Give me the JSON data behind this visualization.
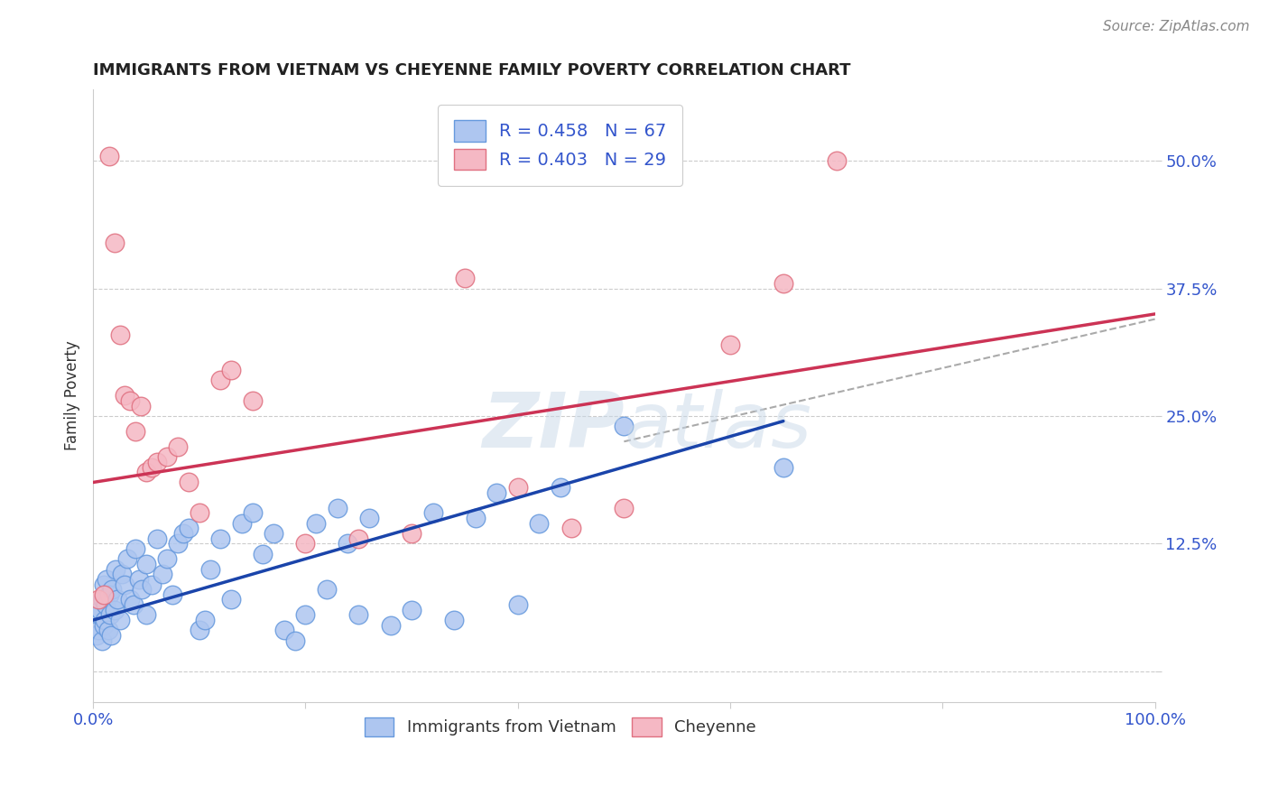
{
  "title": "IMMIGRANTS FROM VIETNAM VS CHEYENNE FAMILY POVERTY CORRELATION CHART",
  "source": "Source: ZipAtlas.com",
  "ylabel": "Family Poverty",
  "xlim": [
    0,
    100
  ],
  "ylim": [
    -3,
    57
  ],
  "yticks": [
    0,
    12.5,
    25.0,
    37.5,
    50.0
  ],
  "ytick_labels": [
    "",
    "12.5%",
    "25.0%",
    "37.5%",
    "50.0%"
  ],
  "xticks": [
    0,
    20,
    40,
    60,
    80,
    100
  ],
  "xtick_labels": [
    "0.0%",
    "",
    "",
    "",
    "",
    "100.0%"
  ],
  "legend1_label": "R = 0.458   N = 67",
  "legend2_label": "R = 0.403   N = 29",
  "series1_color": "#aec6f0",
  "series2_color": "#f5b8c4",
  "series1_edge": "#6699dd",
  "series2_edge": "#e07080",
  "regression1_color": "#1a44aa",
  "regression2_color": "#cc3355",
  "dashed_color": "#aaaaaa",
  "background_color": "#ffffff",
  "grid_color": "#cccccc",
  "title_color": "#222222",
  "axis_label_color": "#333333",
  "tick_color_blue": "#3355cc",
  "tick_color_dark": "#333333",
  "legend_text_color": "#333333",
  "legend_num_color": "#3355cc",
  "blue_points": [
    [
      0.3,
      3.5
    ],
    [
      0.5,
      4.0
    ],
    [
      0.6,
      5.5
    ],
    [
      0.7,
      6.0
    ],
    [
      0.8,
      3.0
    ],
    [
      0.9,
      7.0
    ],
    [
      1.0,
      4.5
    ],
    [
      1.0,
      8.5
    ],
    [
      1.1,
      5.0
    ],
    [
      1.2,
      6.5
    ],
    [
      1.3,
      9.0
    ],
    [
      1.4,
      4.0
    ],
    [
      1.5,
      7.5
    ],
    [
      1.6,
      5.5
    ],
    [
      1.7,
      3.5
    ],
    [
      1.8,
      8.0
    ],
    [
      2.0,
      6.0
    ],
    [
      2.1,
      10.0
    ],
    [
      2.3,
      7.0
    ],
    [
      2.5,
      5.0
    ],
    [
      2.7,
      9.5
    ],
    [
      3.0,
      8.5
    ],
    [
      3.2,
      11.0
    ],
    [
      3.5,
      7.0
    ],
    [
      3.8,
      6.5
    ],
    [
      4.0,
      12.0
    ],
    [
      4.3,
      9.0
    ],
    [
      4.6,
      8.0
    ],
    [
      5.0,
      10.5
    ],
    [
      5.0,
      5.5
    ],
    [
      5.5,
      8.5
    ],
    [
      6.0,
      13.0
    ],
    [
      6.5,
      9.5
    ],
    [
      7.0,
      11.0
    ],
    [
      7.5,
      7.5
    ],
    [
      8.0,
      12.5
    ],
    [
      8.5,
      13.5
    ],
    [
      9.0,
      14.0
    ],
    [
      10.0,
      4.0
    ],
    [
      10.5,
      5.0
    ],
    [
      11.0,
      10.0
    ],
    [
      12.0,
      13.0
    ],
    [
      13.0,
      7.0
    ],
    [
      14.0,
      14.5
    ],
    [
      15.0,
      15.5
    ],
    [
      16.0,
      11.5
    ],
    [
      17.0,
      13.5
    ],
    [
      18.0,
      4.0
    ],
    [
      19.0,
      3.0
    ],
    [
      20.0,
      5.5
    ],
    [
      21.0,
      14.5
    ],
    [
      22.0,
      8.0
    ],
    [
      23.0,
      16.0
    ],
    [
      24.0,
      12.5
    ],
    [
      25.0,
      5.5
    ],
    [
      26.0,
      15.0
    ],
    [
      28.0,
      4.5
    ],
    [
      30.0,
      6.0
    ],
    [
      32.0,
      15.5
    ],
    [
      34.0,
      5.0
    ],
    [
      36.0,
      15.0
    ],
    [
      38.0,
      17.5
    ],
    [
      40.0,
      6.5
    ],
    [
      42.0,
      14.5
    ],
    [
      44.0,
      18.0
    ],
    [
      50.0,
      24.0
    ],
    [
      65.0,
      20.0
    ]
  ],
  "pink_points": [
    [
      0.5,
      7.0
    ],
    [
      1.0,
      7.5
    ],
    [
      1.5,
      50.5
    ],
    [
      2.0,
      42.0
    ],
    [
      2.5,
      33.0
    ],
    [
      3.0,
      27.0
    ],
    [
      3.5,
      26.5
    ],
    [
      4.0,
      23.5
    ],
    [
      4.5,
      26.0
    ],
    [
      5.0,
      19.5
    ],
    [
      5.5,
      20.0
    ],
    [
      6.0,
      20.5
    ],
    [
      7.0,
      21.0
    ],
    [
      8.0,
      22.0
    ],
    [
      9.0,
      18.5
    ],
    [
      10.0,
      15.5
    ],
    [
      12.0,
      28.5
    ],
    [
      13.0,
      29.5
    ],
    [
      15.0,
      26.5
    ],
    [
      20.0,
      12.5
    ],
    [
      25.0,
      13.0
    ],
    [
      30.0,
      13.5
    ],
    [
      35.0,
      38.5
    ],
    [
      40.0,
      18.0
    ],
    [
      45.0,
      14.0
    ],
    [
      50.0,
      16.0
    ],
    [
      60.0,
      32.0
    ],
    [
      65.0,
      38.0
    ],
    [
      70.0,
      50.0
    ]
  ],
  "reg1_x0": 0,
  "reg1_x1": 65,
  "reg1_y0": 5.0,
  "reg1_y1": 24.5,
  "reg2_x0": 0,
  "reg2_x1": 100,
  "reg2_y0": 18.5,
  "reg2_y1": 35.0,
  "dash_x0": 50,
  "dash_x1": 100,
  "dash_y0": 22.5,
  "dash_y1": 34.5
}
